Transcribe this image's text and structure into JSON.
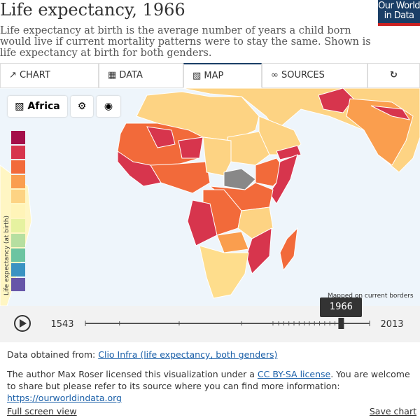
{
  "header": {
    "title": "Life expectancy, 1966",
    "subtitle": "Life expectancy at birth is the average number of years a child born would live if current mortality patterns were to stay the same. Shown is life expectancy at birth for both genders.",
    "logo": [
      "Our World",
      "in Data"
    ]
  },
  "tabs": [
    "CHART",
    "DATA",
    "MAP",
    "SOURCES"
  ],
  "controls": {
    "region": "Africa"
  },
  "legend": {
    "title": "Life expectancy (at birth)",
    "colors": [
      "#a50f4a",
      "#d7354d",
      "#f26a3a",
      "#fa9e4e",
      "#fdd383",
      "#fff4b8",
      "#e6f2a0",
      "#b6dfa0",
      "#6cc4a1",
      "#3a93c2",
      "#6756a8"
    ]
  },
  "note": "Mapped on current borders",
  "timeline": {
    "start": 1543,
    "end": 2013,
    "current": 1966
  },
  "footer": {
    "source_prefix": "Data obtained from:",
    "source_link": "Clio Infra (life expectancy, both genders)",
    "license_1": "The author Max Roser licensed this visualization under a ",
    "license_link": "CC BY-SA license",
    "license_2": ". You are welcome to share but please refer to its source where you can find more information: ",
    "site_link": "https://ourworldindata.org",
    "fullscreen": "Full screen view",
    "save": "Save chart"
  }
}
